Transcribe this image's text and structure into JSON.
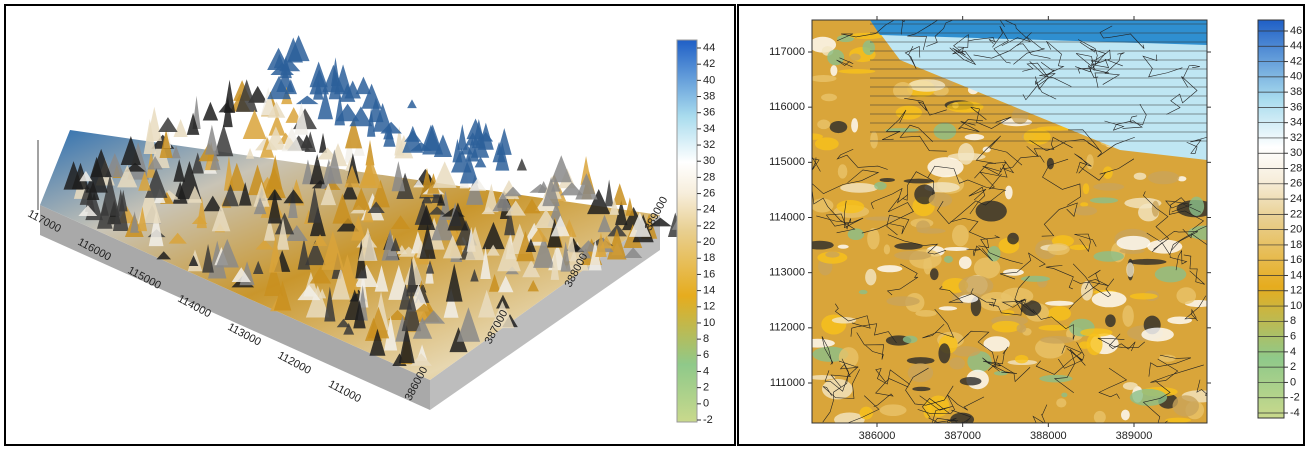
{
  "panels": [
    {
      "y_ticks": [
        117000,
        116000,
        115000,
        114000,
        113000,
        112000,
        111000
      ],
      "x_ticks": [
        386000,
        387000,
        388000,
        389000
      ],
      "colorbar_ticks": [
        44,
        42,
        40,
        38,
        36,
        34,
        32,
        30,
        28,
        26,
        24,
        22,
        20,
        18,
        16,
        14,
        12,
        10,
        8,
        6,
        4,
        2,
        0,
        -2
      ]
    },
    {
      "y_ticks": [
        117000,
        116000,
        115000,
        114000,
        113000,
        112000,
        111000
      ],
      "x_ticks": [
        386000,
        387000,
        388000,
        389000
      ],
      "colorbar_ticks": [
        46,
        44,
        42,
        40,
        38,
        36,
        34,
        32,
        30,
        28,
        26,
        24,
        22,
        20,
        18,
        16,
        14,
        12,
        10,
        8,
        6,
        4,
        2,
        0,
        -2,
        -4
      ]
    }
  ]
}
